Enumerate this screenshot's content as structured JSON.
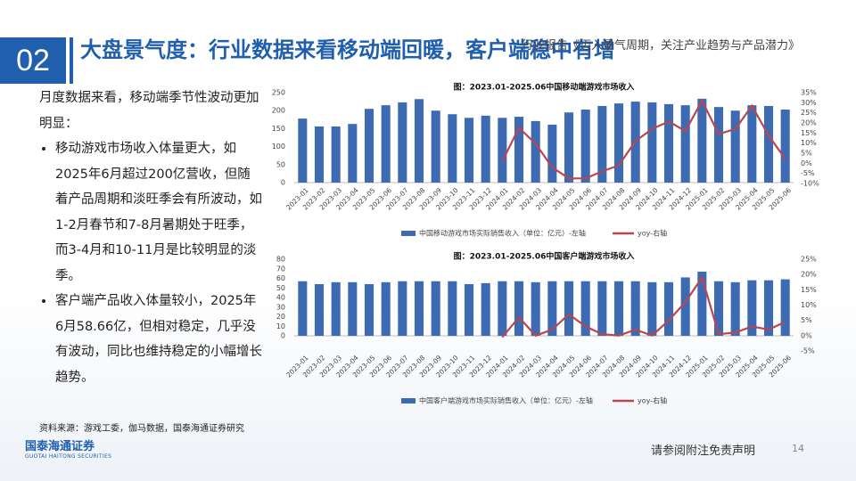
{
  "header": {
    "number": "02",
    "title": "大盘景气度：行业数据来看移动端回暖，客户端稳中有增",
    "note": "行业报告《迈入景气周期，关注产业趋势与产品潜力》"
  },
  "body": {
    "intro": "月度数据来看，移动端季节性波动更加明显：",
    "bullets": [
      "移动游戏市场收入体量更大，如2025年6月超过200亿营收，但随着产品周期和淡旺季会有所波动，如1-2月春节和7-8月暑期处于旺季，而3-4月和10-11月是比较明显的淡季。",
      "客户端产品收入体量较小，2025年6月58.66亿，但相对稳定，几乎没有波动，同比也维持稳定的小幅增长趋势。"
    ]
  },
  "source": "资料来源：游戏工委，伽马数据，国泰海通证券研究",
  "logo": {
    "name": "国泰海通证券",
    "english": "GUOTAI HAITONG SECURITIES"
  },
  "footer": {
    "disclaimer": "请参阅附注免责声明",
    "page": "14"
  },
  "chart_data": [
    {
      "type": "bar",
      "title": "图：2023.01-2025.06中国移动端游戏市场收入",
      "categories": [
        "2023-01",
        "2023-02",
        "2023-03",
        "2023-04",
        "2023-05",
        "2023-06",
        "2023-07",
        "2023-08",
        "2023-09",
        "2023-10",
        "2023-11",
        "2023-12",
        "2024-01",
        "2024-02",
        "2024-03",
        "2024-04",
        "2024-05",
        "2024-06",
        "2024-07",
        "2024-08",
        "2024-09",
        "2024-10",
        "2024-11",
        "2024-12",
        "2025-01",
        "2025-02",
        "2025-03",
        "2025-04",
        "2025-05",
        "2025-06"
      ],
      "series": [
        {
          "name": "中国移动游戏市场实际销售收入（单位：亿元）-左轴",
          "color": "#3d6bb3",
          "kind": "bar",
          "values": [
            178,
            156,
            156,
            163,
            205,
            215,
            223,
            232,
            200,
            190,
            180,
            186,
            180,
            183,
            171,
            161,
            195,
            203,
            213,
            220,
            225,
            223,
            218,
            215,
            233,
            210,
            200,
            215,
            213,
            203
          ]
        },
        {
          "name": "yoy-右轴",
          "color": "#b8474f",
          "kind": "line",
          "axis": "y2",
          "values": [
            null,
            null,
            null,
            null,
            null,
            null,
            null,
            null,
            null,
            null,
            null,
            null,
            1,
            17.6,
            9.7,
            -2,
            -7.5,
            -7.5,
            -4,
            -1,
            11,
            17,
            20.7,
            16,
            31,
            14.5,
            17,
            28.5,
            13.7,
            2.2
          ]
        }
      ],
      "ylim": [
        0,
        250
      ],
      "yticks": [
        0,
        50,
        100,
        150,
        200,
        250
      ],
      "y2lim": [
        -10,
        35
      ],
      "y2ticks": [
        {
          "value": -10,
          "label": "-10%"
        },
        {
          "value": -5,
          "label": "-5%"
        },
        {
          "value": 0,
          "label": "0%"
        },
        {
          "value": 5,
          "label": "5%"
        },
        {
          "value": 10,
          "label": "10%"
        },
        {
          "value": 15,
          "label": "15%"
        },
        {
          "value": 20,
          "label": "20%"
        },
        {
          "value": 25,
          "label": "25%"
        },
        {
          "value": 30,
          "label": "30%"
        },
        {
          "value": 35,
          "label": "35%"
        }
      ],
      "legend": "bottom"
    },
    {
      "type": "bar",
      "title": "图：2023.01-2025.06中国客户端游戏市场收入",
      "categories": [
        "2023-01",
        "2023-02",
        "2023-03",
        "2023-04",
        "2023-05",
        "2023-06",
        "2023-07",
        "2023-08",
        "2023-09",
        "2023-10",
        "2023-11",
        "2023-12",
        "2024-01",
        "2024-02",
        "2024-03",
        "2024-04",
        "2024-05",
        "2024-06",
        "2024-07",
        "2024-08",
        "2024-09",
        "2024-10",
        "2024-11",
        "2024-12",
        "2025-01",
        "2025-02",
        "2025-03",
        "2025-04",
        "2025-05",
        "2025-06"
      ],
      "series": [
        {
          "name": "中国客户端游戏市场实际销售收入（单位：亿元）-左轴",
          "color": "#3d6bb3",
          "kind": "bar",
          "values": [
            57,
            54,
            56,
            56,
            54,
            56,
            57,
            57,
            57,
            57,
            54,
            55,
            57,
            57,
            56,
            57,
            57,
            57,
            57,
            57,
            57,
            56,
            56,
            61,
            67,
            57,
            56,
            58,
            58,
            59
          ]
        },
        {
          "name": "yoy-右轴",
          "color": "#b8474f",
          "kind": "line",
          "axis": "y2",
          "values": [
            null,
            null,
            null,
            null,
            null,
            null,
            null,
            null,
            null,
            null,
            null,
            null,
            -0.5,
            6,
            0,
            2,
            7,
            3,
            0.5,
            0,
            2,
            0,
            5,
            11,
            19,
            0.5,
            1,
            3,
            2,
            4.5
          ]
        }
      ],
      "ylim": [
        0,
        80
      ],
      "yticks": [
        0,
        10,
        20,
        30,
        40,
        50,
        60,
        70,
        80
      ],
      "y2lim": [
        -5,
        25
      ],
      "y2ticks": [
        {
          "value": -5,
          "label": "-5%"
        },
        {
          "value": 0,
          "label": "0%"
        },
        {
          "value": 5,
          "label": "5%"
        },
        {
          "value": 10,
          "label": "10%"
        },
        {
          "value": 15,
          "label": "15%"
        },
        {
          "value": 20,
          "label": "20%"
        },
        {
          "value": 25,
          "label": "25%"
        }
      ],
      "legend": "bottom"
    }
  ]
}
